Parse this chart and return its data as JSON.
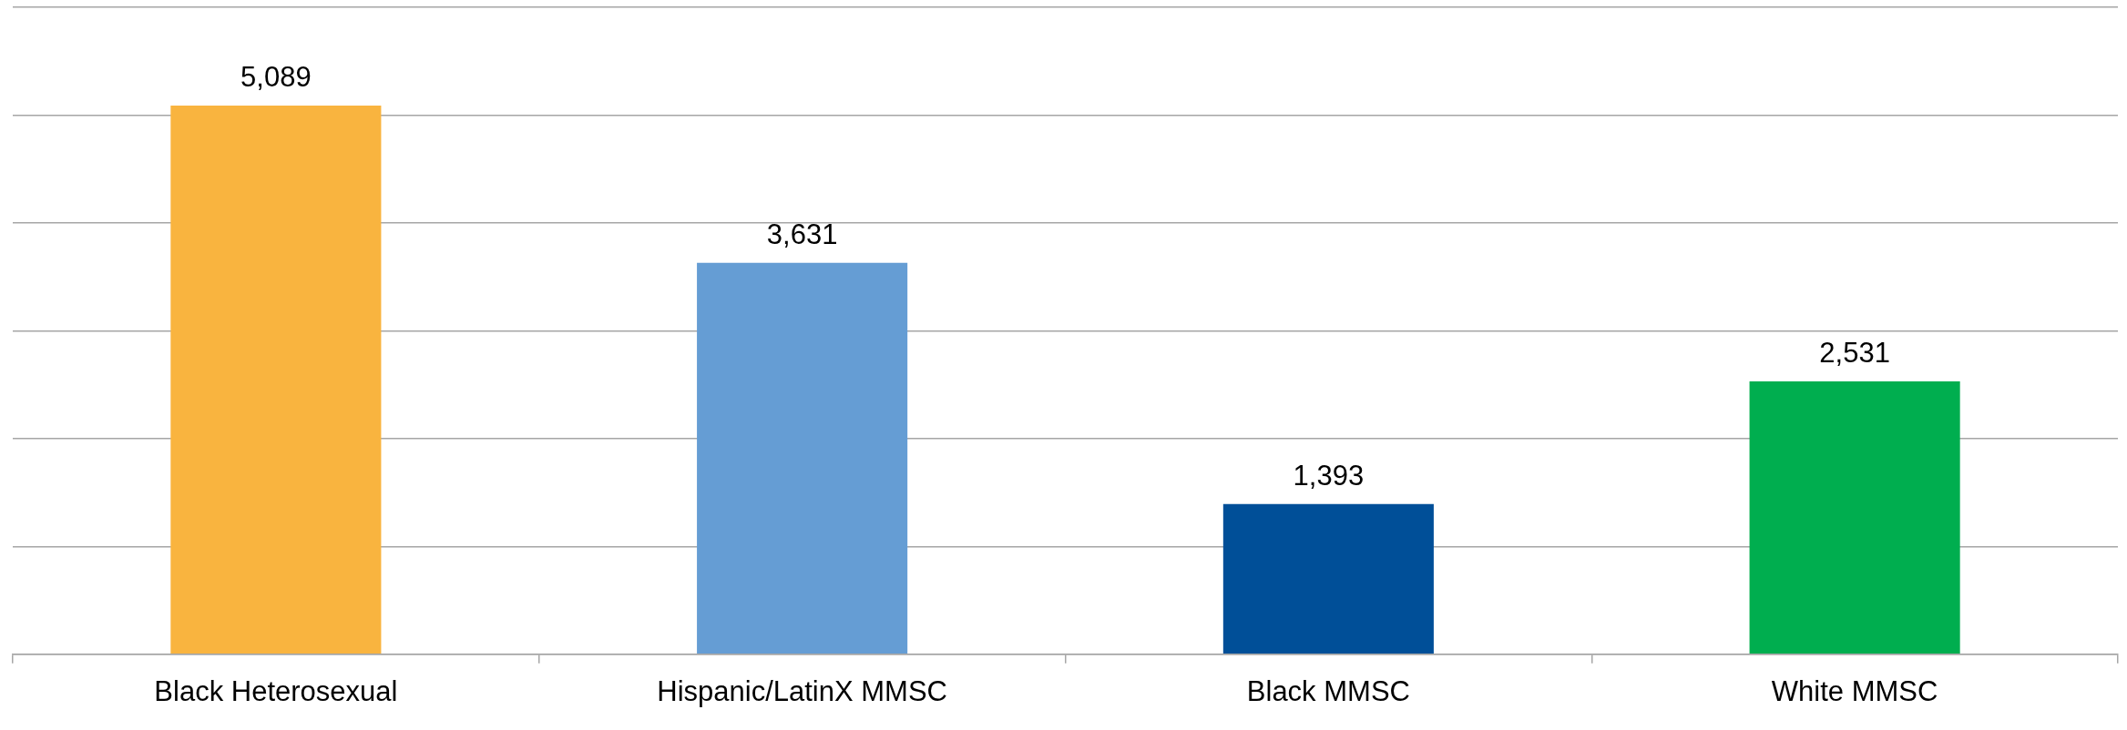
{
  "chart_data": {
    "type": "bar",
    "categories": [
      "Black Heterosexual",
      "Hispanic/LatinX MMSC",
      "Black MMSC",
      "White MMSC"
    ],
    "values": [
      5089,
      3631,
      1393,
      2531
    ],
    "colors": [
      "#f9b43f",
      "#659dd4",
      "#004f98",
      "#00ae4f"
    ],
    "value_labels": [
      "5,089",
      "3,631",
      "1,393",
      "2,531"
    ],
    "ylim": [
      0,
      6000
    ],
    "yticks": [
      {
        "value": 0,
        "label": null
      },
      {
        "value": 1000,
        "label": null
      },
      {
        "value": 2000,
        "label": null
      },
      {
        "value": 3000,
        "label": null
      },
      {
        "value": 4000,
        "label": null
      },
      {
        "value": 5000,
        "label": null
      },
      {
        "value": 6000,
        "label": null
      }
    ],
    "tick_labels": "x",
    "grid": "y",
    "legend": false
  }
}
